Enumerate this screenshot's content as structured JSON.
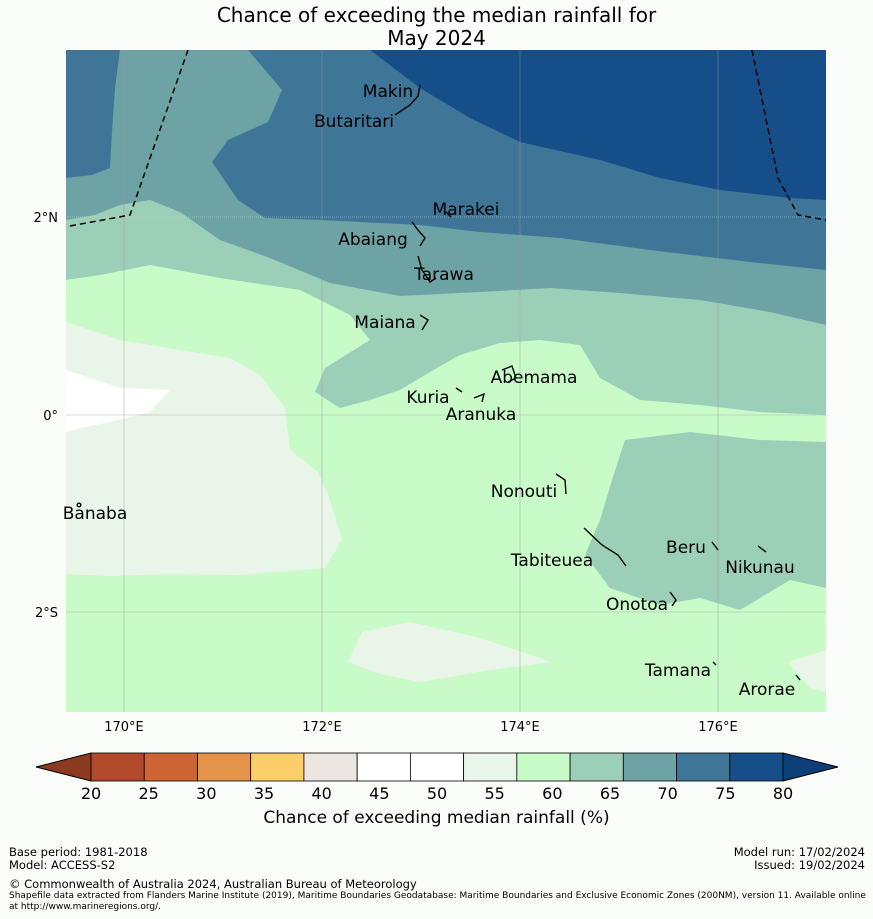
{
  "title_line1": "Chance of exceeding the median rainfall for",
  "title_line2": "May 2024",
  "axes": {
    "lon_labels": [
      "170°E",
      "172°E",
      "174°E",
      "176°E"
    ],
    "lat_labels": [
      "2°N",
      "0°",
      "2°S"
    ]
  },
  "places": [
    "Makin",
    "Butaritari",
    "Marakei",
    "Abaiang",
    "Tarawa",
    "Maiana",
    "Abemama",
    "Kuria",
    "Aranuka",
    "Nonouti",
    "Banaba",
    "Tabiteuea",
    "Beru",
    "Nikunau",
    "Onotoa",
    "Tamana",
    "Arorae"
  ],
  "colorbar": {
    "ticks": [
      "20",
      "25",
      "30",
      "35",
      "40",
      "45",
      "50",
      "55",
      "60",
      "65",
      "70",
      "75",
      "80"
    ],
    "colors": [
      "#b04a2a",
      "#cd6434",
      "#e4944a",
      "#fdcd6a",
      "#ece6e2",
      "#ffffff",
      "#ffffff",
      "#eaf5ea",
      "#c8fbc8",
      "#9bcfb7",
      "#6da3a4",
      "#3f7697",
      "#154e88"
    ],
    "label": "Chance of exceeding median rainfall (%)"
  },
  "footer": {
    "base_period": "Base period: 1981-2018",
    "model": "Model: ACCESS-S2",
    "model_run": "Model run: 17/02/2024",
    "issued": "Issued: 19/02/2024",
    "copyright": "© Commonwealth of Australia 2024, Australian Bureau of Meteorology",
    "shapefile_note": "Shapefile data extracted from Flanders Marine Institute (2019), Maritime Boundaries Geodatabase: Maritime Boundaries and Exclusive Economic Zones (200NM), version 11. Available online at http://www.marineregions.org/."
  }
}
